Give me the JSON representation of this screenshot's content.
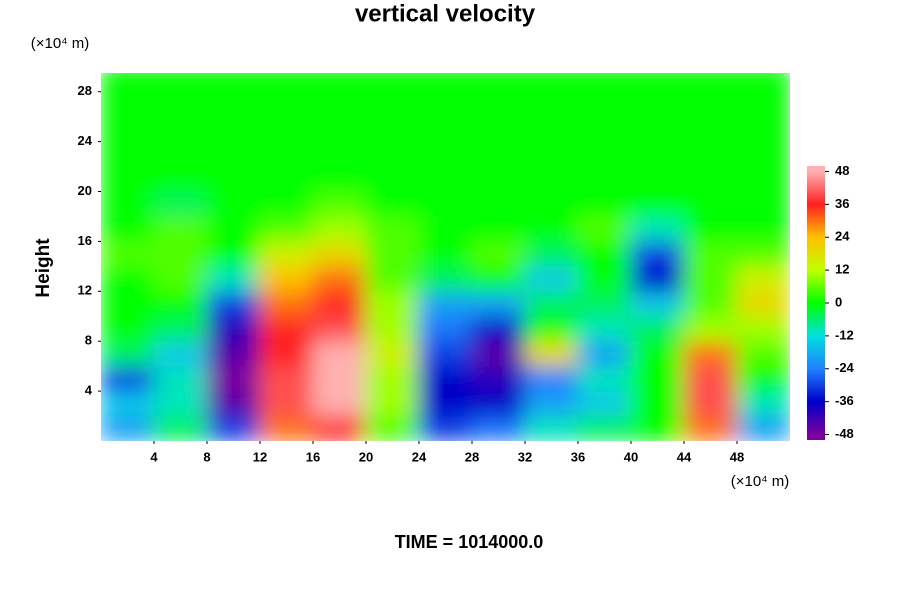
{
  "chart_data": {
    "type": "contour",
    "title": "vertical velocity",
    "y_label": "Height",
    "x_unit": "(×10⁴ m)",
    "y_unit": "(×10⁴ m)",
    "footer": "TIME = 1014000.0",
    "x": [
      2,
      6,
      10,
      14,
      18,
      22,
      26,
      30,
      34,
      38,
      42,
      46,
      50
    ],
    "y": [
      1,
      3,
      5,
      7,
      9,
      11,
      13,
      15,
      17,
      19,
      21,
      23,
      25,
      27,
      29
    ],
    "z": [
      [
        -20,
        -5,
        -30,
        30,
        36,
        5,
        -30,
        -25,
        -10,
        -5,
        0,
        30,
        -20
      ],
      [
        -15,
        -10,
        -45,
        40,
        48,
        10,
        -36,
        -36,
        -20,
        -15,
        0,
        40,
        -10
      ],
      [
        -30,
        -10,
        -48,
        40,
        48,
        10,
        -36,
        -40,
        -24,
        -10,
        0,
        40,
        0
      ],
      [
        -5,
        -15,
        -45,
        36,
        48,
        15,
        -30,
        -45,
        20,
        -20,
        0,
        30,
        5
      ],
      [
        0,
        -5,
        -40,
        36,
        40,
        10,
        -25,
        -36,
        0,
        -10,
        -5,
        10,
        10
      ],
      [
        0,
        0,
        -30,
        30,
        36,
        10,
        -20,
        -20,
        -5,
        -5,
        -15,
        5,
        20
      ],
      [
        0,
        5,
        -10,
        24,
        30,
        5,
        -5,
        0,
        -15,
        0,
        -36,
        5,
        15
      ],
      [
        5,
        5,
        0,
        15,
        20,
        5,
        0,
        5,
        -5,
        0,
        -30,
        5,
        5
      ],
      [
        0,
        5,
        0,
        5,
        10,
        5,
        0,
        0,
        0,
        5,
        -10,
        0,
        0
      ],
      [
        0,
        -5,
        0,
        0,
        5,
        0,
        0,
        0,
        0,
        0,
        0,
        0,
        0
      ],
      [
        0,
        0,
        0,
        0,
        0,
        0,
        0,
        0,
        0,
        0,
        0,
        0,
        0
      ],
      [
        0,
        0,
        0,
        0,
        0,
        0,
        0,
        0,
        0,
        0,
        0,
        0,
        0
      ],
      [
        0,
        0,
        0,
        0,
        0,
        0,
        0,
        0,
        0,
        0,
        0,
        0,
        0
      ],
      [
        0,
        0,
        0,
        0,
        0,
        0,
        0,
        0,
        0,
        0,
        0,
        0,
        0
      ],
      [
        0,
        0,
        0,
        0,
        0,
        0,
        0,
        0,
        0,
        0,
        0,
        0,
        0
      ]
    ],
    "xlim": [
      0,
      52
    ],
    "ylim": [
      0,
      29.5
    ],
    "xticks": [
      4,
      8,
      12,
      16,
      20,
      24,
      28,
      32,
      36,
      40,
      44,
      48
    ],
    "yticks": [
      4,
      8,
      12,
      16,
      20,
      24,
      28
    ],
    "zlim": [
      -50,
      50
    ],
    "zticks": [
      -48,
      -36,
      -24,
      -12,
      0,
      12,
      24,
      36,
      48
    ],
    "colorscale": [
      {
        "value": -48,
        "color": "#7a00a0"
      },
      {
        "value": -36,
        "color": "#0000c8"
      },
      {
        "value": -24,
        "color": "#2080ff"
      },
      {
        "value": -12,
        "color": "#00e0e0"
      },
      {
        "value": 0,
        "color": "#00ff00"
      },
      {
        "value": 12,
        "color": "#c0ff00"
      },
      {
        "value": 24,
        "color": "#ffc000"
      },
      {
        "value": 36,
        "color": "#ff2020"
      },
      {
        "value": 48,
        "color": "#ffb0b0"
      }
    ]
  }
}
